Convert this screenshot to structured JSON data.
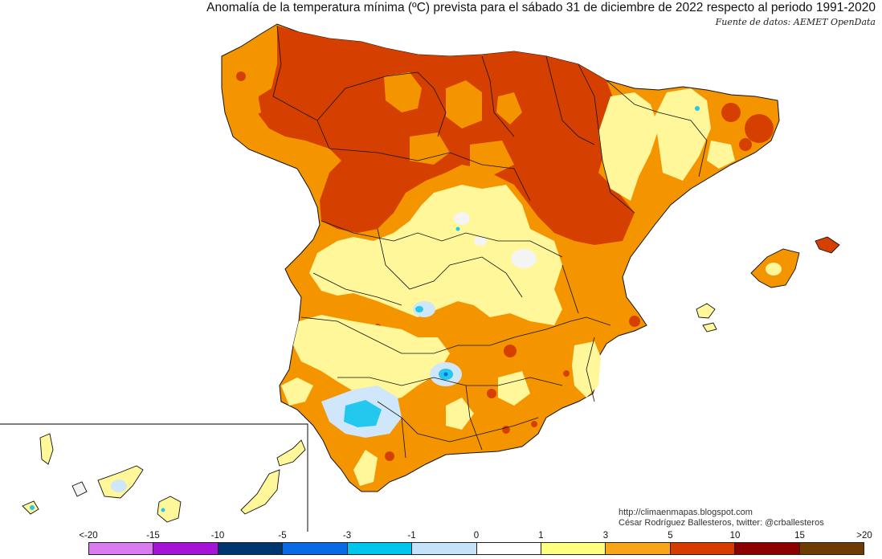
{
  "title": "Anomalía de la temperatura mínima (ºC) prevista para el sábado 31 de diciembre de 2022 respecto al periodo 1991-2020",
  "source": "Fuente de datos: AEMET OpenData",
  "credits": {
    "blog": "http://climaenmapas.blogspot.com",
    "author": "César Rodríguez Ballesteros, twitter: @crballesteros"
  },
  "legend": {
    "labels": [
      "<-20",
      "-15",
      "-10",
      "-5",
      "-3",
      "-1",
      "0",
      "1",
      "3",
      "5",
      "10",
      "15",
      ">20"
    ],
    "colors": [
      "#d97cf0",
      "#a514d6",
      "#003670",
      "#0a6ae6",
      "#00c6ee",
      "#c4e3fa",
      "#ffffff",
      "#ffff80",
      "#f8a51a",
      "#d63c00",
      "#8c0000",
      "#6e3c00"
    ]
  },
  "map_colors": {
    "anom_1_3": "#fff79a",
    "anom_3_5": "#f49500",
    "anom_5_10": "#d54000",
    "anom_0_1": "#f4f4f4",
    "anom_-1_0": "#cfe6fb",
    "anom_-3_-1": "#22c8ee"
  }
}
